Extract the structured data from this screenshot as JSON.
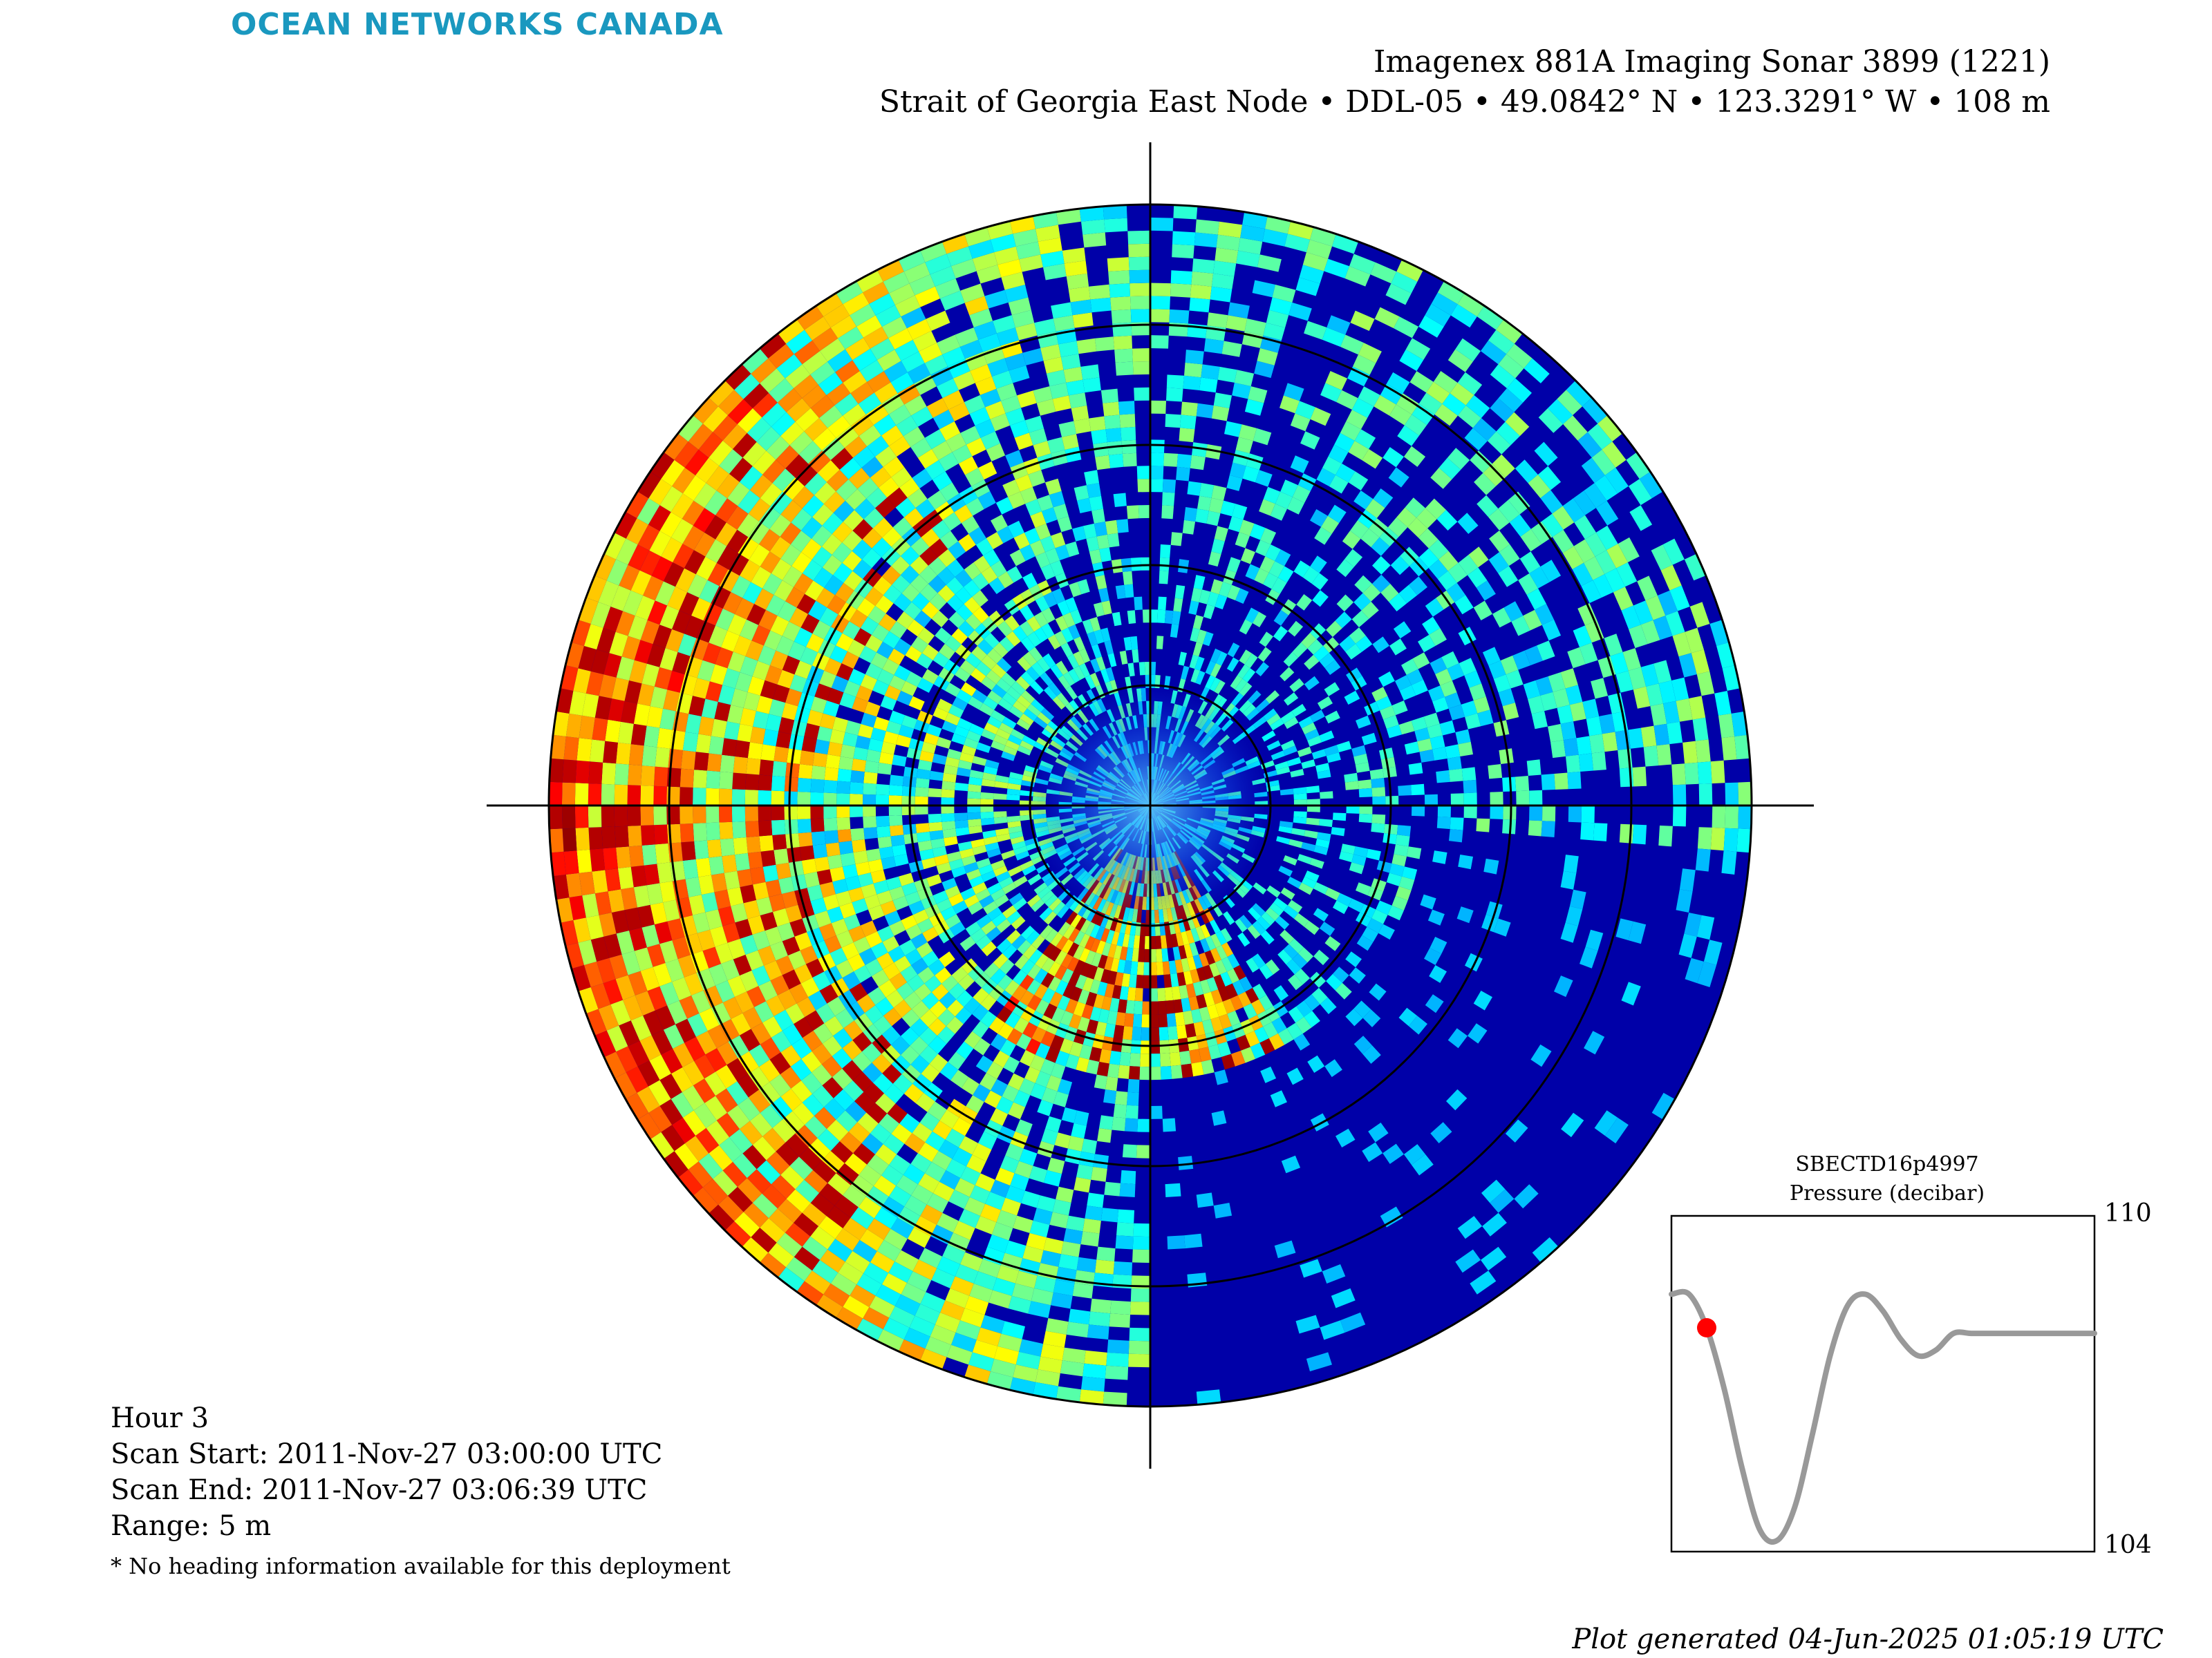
{
  "logo": "OCEAN NETWORKS CANADA",
  "title_line1": "Imagenex 881A Imaging Sonar 3899 (1221)",
  "title_line2": "Strait of Georgia East Node • DDL-05 • 49.0842° N • 123.3291° W • 108 m",
  "scan_info": {
    "hour": "Hour 3",
    "scan_start": "Scan Start: 2011-Nov-27 03:00:00 UTC",
    "scan_end": "Scan End: 2011-Nov-27 03:06:39 UTC",
    "range": "Range: 5 m",
    "note": "* No heading information available for this deployment"
  },
  "generated": "Plot generated 04-Jun-2025 01:05:19 UTC",
  "colors": {
    "logo": "#1a98bf",
    "sonar_background": "#0000a8",
    "pressure_line": "#999999",
    "current_marker": "#ff0000"
  },
  "chart_data": [
    {
      "type": "heatmap",
      "projection": "polar",
      "range_m": 5,
      "range_rings_m": [
        1,
        2,
        3,
        4,
        5
      ],
      "colormap": "jet",
      "grid": true,
      "title": "",
      "xlabel": "",
      "ylabel": ""
    },
    {
      "type": "line",
      "title": "SBECTD16p4997",
      "subtitle": "Pressure (decibar)",
      "ylim": [
        104,
        110
      ],
      "yticks": [
        "110",
        "104"
      ],
      "x": [
        0,
        0.25,
        0.5,
        0.75,
        1,
        1.25,
        1.5,
        1.75,
        2,
        2.25,
        2.5,
        2.75,
        3,
        3.25,
        3.5,
        3.75,
        4,
        4.25,
        4.5,
        4.75,
        5,
        5.25,
        5.5,
        5.75,
        6
      ],
      "values": [
        108.6,
        108.6,
        108.0,
        106.9,
        105.5,
        104.4,
        104.2,
        104.8,
        106.1,
        107.5,
        108.4,
        108.6,
        108.3,
        107.8,
        107.5,
        107.6,
        107.9,
        107.9,
        107.9,
        107.9,
        107.9,
        107.9,
        107.9,
        107.9,
        107.9
      ],
      "current_index": 2
    }
  ]
}
